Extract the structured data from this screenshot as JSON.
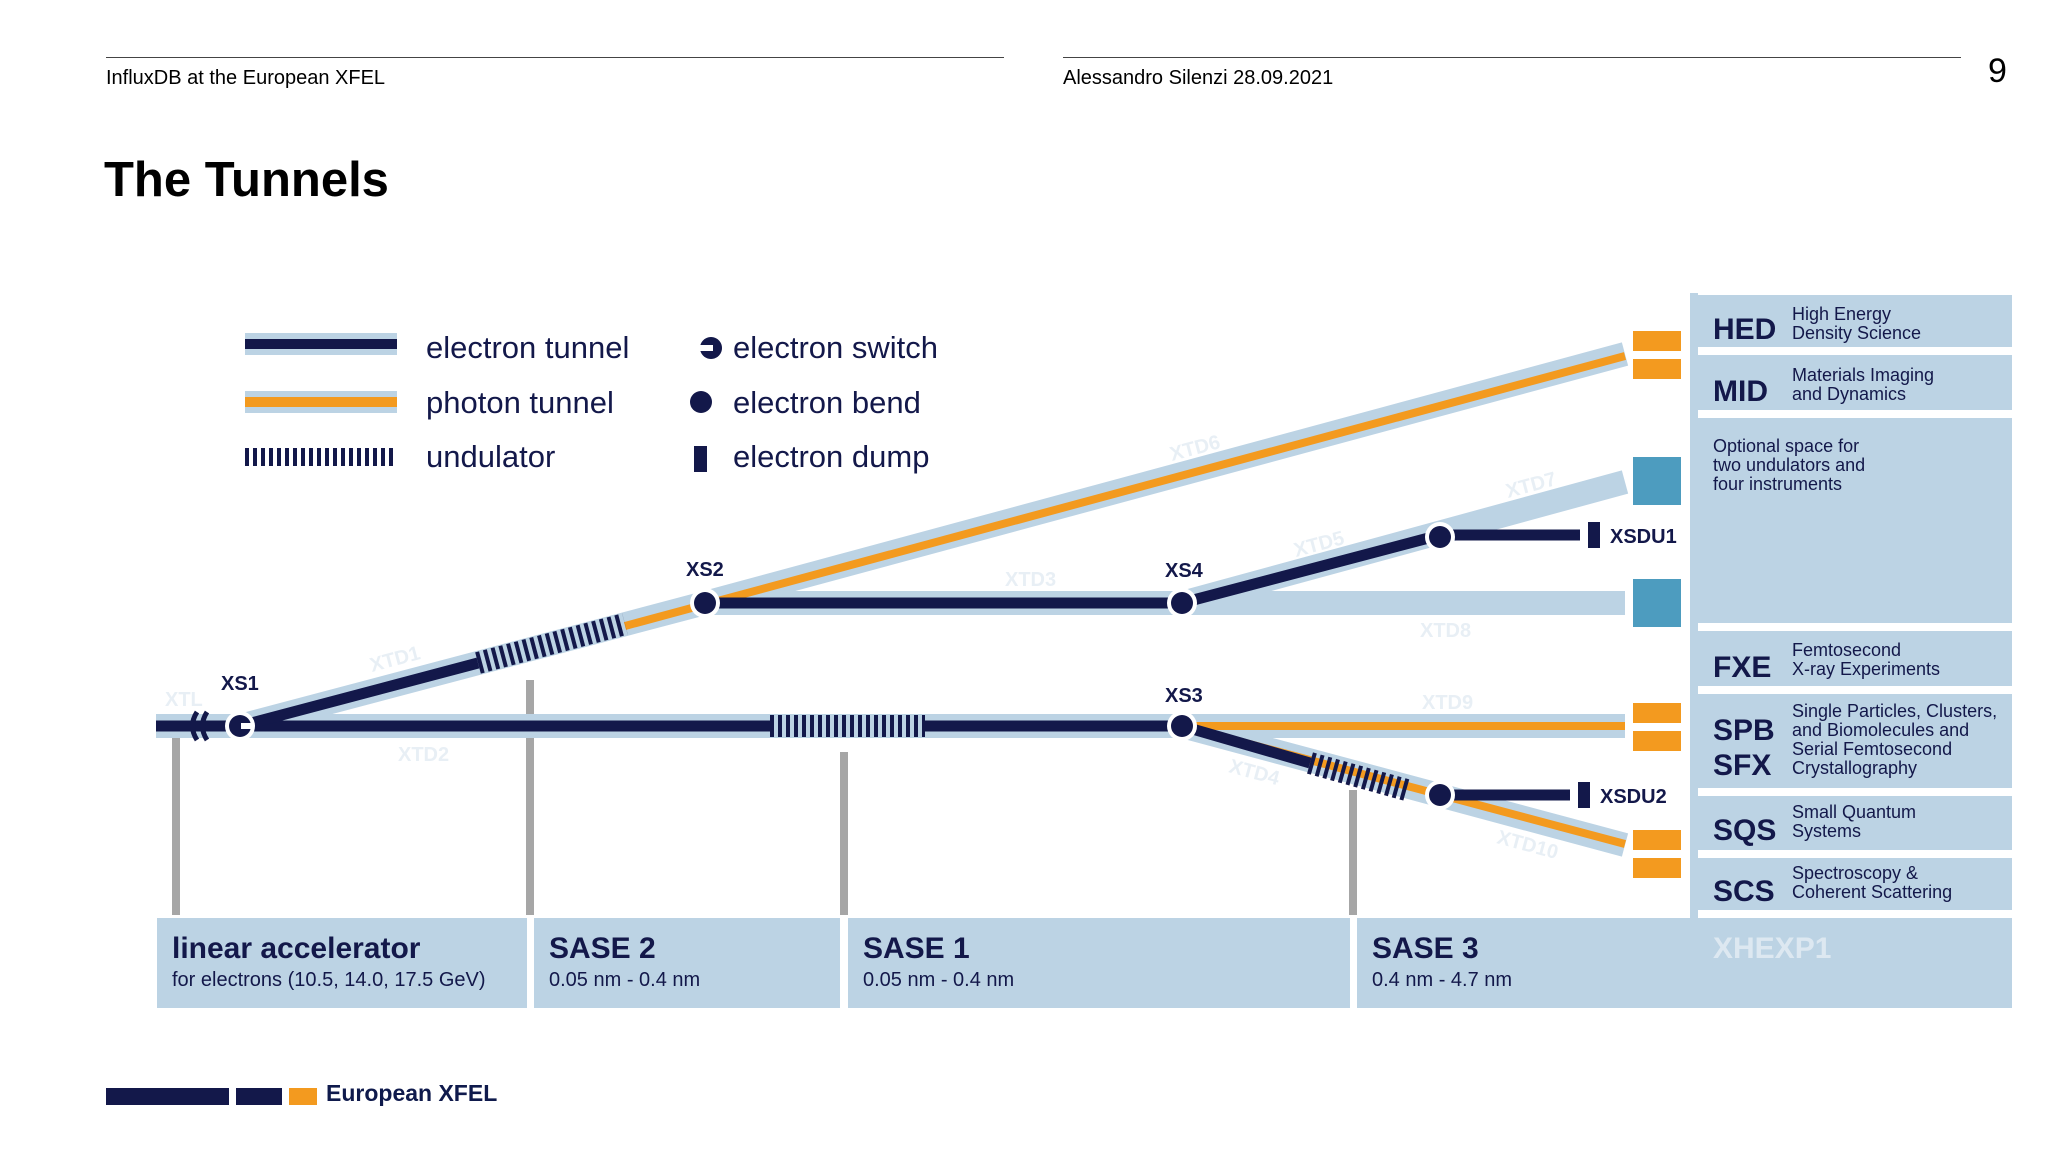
{
  "header": {
    "left_text": "InfluxDB at the European XFEL",
    "right_text": "Alessandro Silenzi 28.09.2021",
    "page_number": "9"
  },
  "title": "The Tunnels",
  "legend": {
    "electron_tunnel": "electron tunnel",
    "photon_tunnel": "photon tunnel",
    "undulator": "undulator",
    "electron_switch": "electron switch",
    "electron_bend": "electron bend",
    "electron_dump": "electron dump"
  },
  "nodes": {
    "xs1": "XS1",
    "xs2": "XS2",
    "xs3": "XS3",
    "xs4": "XS4",
    "xsdu1": "XSDU1",
    "xsdu2": "XSDU2"
  },
  "tunnels": {
    "xtl": "XTL",
    "xtd1": "XTD1",
    "xtd2": "XTD2",
    "xtd3": "XTD3",
    "xtd4": "XTD4",
    "xtd5": "XTD5",
    "xtd6": "XTD6",
    "xtd7": "XTD7",
    "xtd8": "XTD8",
    "xtd9": "XTD9",
    "xtd10": "XTD10"
  },
  "sections": {
    "linac": {
      "name": "linear accelerator",
      "detail": "for electrons (10.5, 14.0, 17.5 GeV)"
    },
    "sase2": {
      "name": "SASE 2",
      "detail": "0.05 nm - 0.4 nm"
    },
    "sase1": {
      "name": "SASE 1",
      "detail": "0.05 nm - 0.4 nm"
    },
    "sase3": {
      "name": "SASE 3",
      "detail": "0.4 nm - 4.7 nm"
    },
    "xhexp1": {
      "name": "XHEXP1"
    }
  },
  "instruments": {
    "hed": {
      "code": "HED",
      "line1": "High Energy",
      "line2": "Density Science"
    },
    "mid": {
      "code": "MID",
      "line1": "Materials Imaging",
      "line2": "and Dynamics"
    },
    "optional": {
      "line1": "Optional space for",
      "line2": "two undulators and",
      "line3": "four instruments"
    },
    "fxe": {
      "code": "FXE",
      "line1": "Femtosecond",
      "line2": "X-ray Experiments"
    },
    "spb": {
      "code": "SPB",
      "line1": "Single Particles, Clusters,",
      "line2": "and Biomolecules and"
    },
    "sfx": {
      "code": "SFX",
      "line1": "Serial Femtosecond",
      "line2": "Crystallography"
    },
    "sqs": {
      "code": "SQS",
      "line1": "Small Quantum",
      "line2": "Systems"
    },
    "scs": {
      "code": "SCS",
      "line1": "Spectroscopy &",
      "line2": "Coherent Scattering"
    }
  },
  "footer": {
    "brand": "European XFEL"
  },
  "colors": {
    "navy": "#13184a",
    "orange": "#f39a1f",
    "light_blue": "#bcd3e4",
    "teal": "#4d9cbf",
    "grey": "#a6a6a6",
    "tunnel_label": "#e8eff5"
  }
}
